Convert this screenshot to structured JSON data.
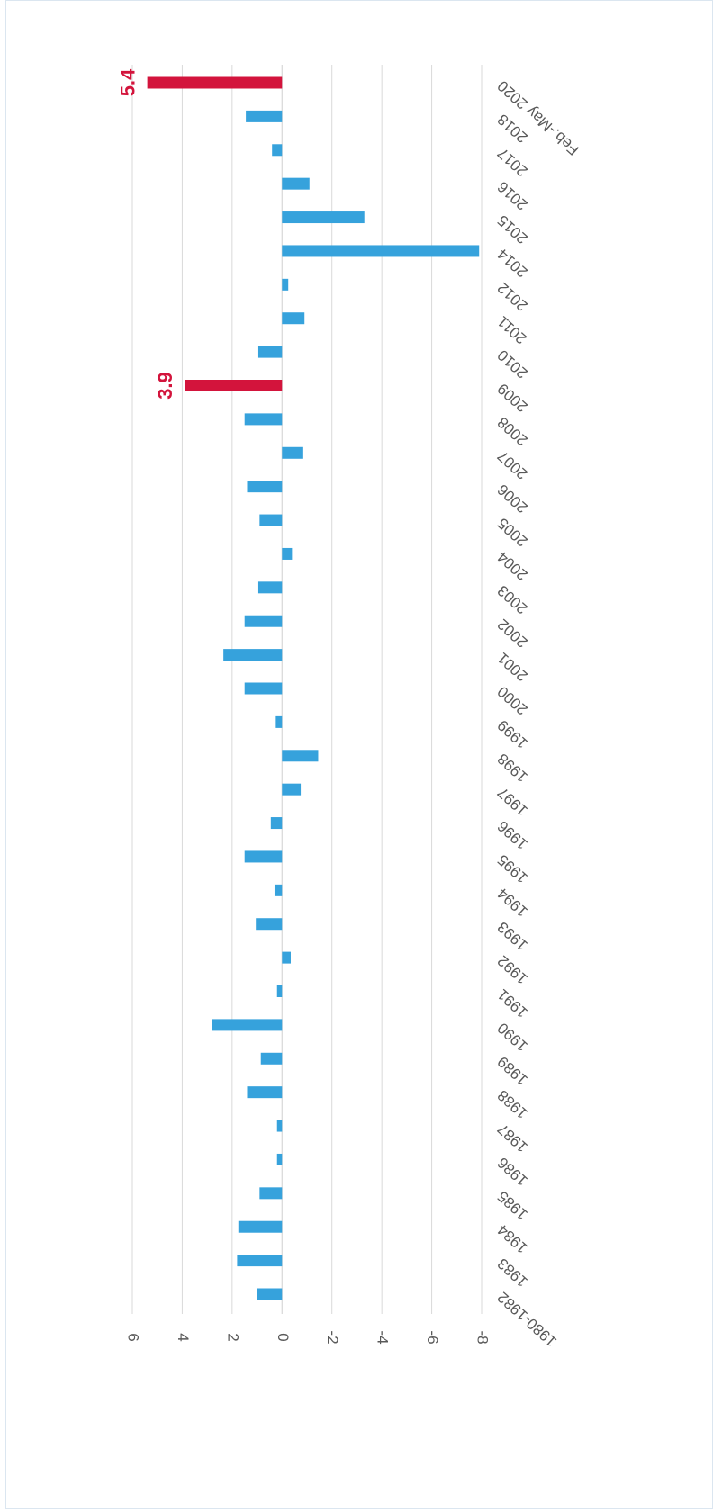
{
  "chart_data": {
    "type": "bar",
    "categories": [
      "1980-1982",
      "1983",
      "1984",
      "1985",
      "1986",
      "1987",
      "1988",
      "1989",
      "1990",
      "1991",
      "1992",
      "1993",
      "1994",
      "1995",
      "1996",
      "1997",
      "1998",
      "1999",
      "2000",
      "2001",
      "2002",
      "2003",
      "2004",
      "2005",
      "2006",
      "2007",
      "2008",
      "2009",
      "2010",
      "2011",
      "2012",
      "2014",
      "2015",
      "2016",
      "2017",
      "2018",
      "Feb.-May 2020"
    ],
    "values": [
      1.0,
      1.8,
      1.75,
      0.9,
      0.2,
      0.2,
      1.4,
      0.85,
      2.8,
      0.2,
      -0.35,
      1.05,
      0.3,
      1.5,
      0.45,
      -0.75,
      -1.45,
      0.25,
      1.5,
      2.35,
      1.5,
      0.95,
      -0.4,
      0.9,
      1.4,
      -0.85,
      1.5,
      3.9,
      0.95,
      -0.9,
      -0.25,
      -7.9,
      -3.3,
      -1.1,
      0.4,
      1.45,
      5.4
    ],
    "value_labels": [
      null,
      null,
      null,
      null,
      null,
      null,
      null,
      null,
      null,
      null,
      null,
      null,
      null,
      null,
      null,
      null,
      null,
      null,
      null,
      null,
      null,
      null,
      null,
      null,
      null,
      null,
      null,
      "3.9",
      null,
      null,
      null,
      null,
      null,
      null,
      null,
      null,
      "5.4"
    ],
    "colors": [
      "#36a2dc",
      "#36a2dc",
      "#36a2dc",
      "#36a2dc",
      "#36a2dc",
      "#36a2dc",
      "#36a2dc",
      "#36a2dc",
      "#36a2dc",
      "#36a2dc",
      "#36a2dc",
      "#36a2dc",
      "#36a2dc",
      "#36a2dc",
      "#36a2dc",
      "#36a2dc",
      "#36a2dc",
      "#36a2dc",
      "#36a2dc",
      "#36a2dc",
      "#36a2dc",
      "#36a2dc",
      "#36a2dc",
      "#36a2dc",
      "#36a2dc",
      "#36a2dc",
      "#36a2dc",
      "#d3143c",
      "#36a2dc",
      "#36a2dc",
      "#36a2dc",
      "#36a2dc",
      "#36a2dc",
      "#36a2dc",
      "#36a2dc",
      "#36a2dc",
      "#d3143c"
    ],
    "ylim": [
      6,
      -8
    ],
    "yticks": [
      6,
      4,
      2,
      0,
      -2,
      -4,
      -6,
      -8
    ],
    "grid": true
  }
}
